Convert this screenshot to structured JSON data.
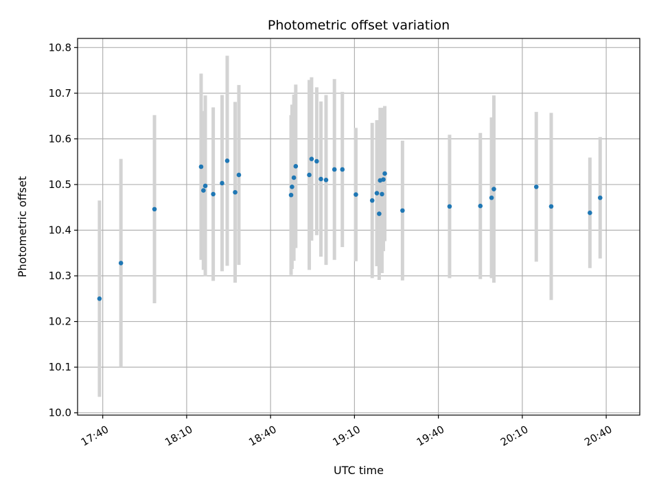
{
  "chart_data": {
    "type": "scatter",
    "title": "Photometric offset variation",
    "xlabel": "UTC time",
    "ylabel": "Photometric offset",
    "xlim": [
      "17:31",
      "20:52"
    ],
    "ylim": [
      9.995,
      10.82
    ],
    "x_ticks": [
      "17:40",
      "18:10",
      "18:40",
      "19:10",
      "19:40",
      "20:10",
      "20:40"
    ],
    "y_ticks": [
      10.0,
      10.1,
      10.2,
      10.3,
      10.4,
      10.5,
      10.6,
      10.7,
      10.8
    ],
    "y_tick_labels": [
      "10.0",
      "10.1",
      "10.2",
      "10.3",
      "10.4",
      "10.5",
      "10.6",
      "10.7",
      "10.8"
    ],
    "grid": true,
    "marker_color": "#1f77b4",
    "errorbar_color": "#d3d3d3",
    "points": [
      {
        "t": "17:38:50",
        "y": 10.25,
        "err": 0.215
      },
      {
        "t": "17:46:30",
        "y": 10.328,
        "err": 0.228
      },
      {
        "t": "17:58:30",
        "y": 10.446,
        "err": 0.206
      },
      {
        "t": "18:15:10",
        "y": 10.539,
        "err": 0.204
      },
      {
        "t": "18:16:00",
        "y": 10.487,
        "err": 0.174
      },
      {
        "t": "18:16:40",
        "y": 10.497,
        "err": 0.198
      },
      {
        "t": "18:19:30",
        "y": 10.479,
        "err": 0.19
      },
      {
        "t": "18:22:40",
        "y": 10.503,
        "err": 0.193
      },
      {
        "t": "18:24:30",
        "y": 10.552,
        "err": 0.23
      },
      {
        "t": "18:27:20",
        "y": 10.483,
        "err": 0.198
      },
      {
        "t": "18:28:40",
        "y": 10.521,
        "err": 0.197
      },
      {
        "t": "18:47:20",
        "y": 10.477,
        "err": 0.175
      },
      {
        "t": "18:47:40",
        "y": 10.495,
        "err": 0.18
      },
      {
        "t": "18:48:20",
        "y": 10.515,
        "err": 0.182
      },
      {
        "t": "18:49:00",
        "y": 10.54,
        "err": 0.179
      },
      {
        "t": "18:53:50",
        "y": 10.521,
        "err": 0.208
      },
      {
        "t": "18:54:40",
        "y": 10.556,
        "err": 0.179
      },
      {
        "t": "18:56:30",
        "y": 10.551,
        "err": 0.162
      },
      {
        "t": "18:58:00",
        "y": 10.512,
        "err": 0.17
      },
      {
        "t": "18:59:50",
        "y": 10.51,
        "err": 0.186
      },
      {
        "t": "19:02:50",
        "y": 10.533,
        "err": 0.198
      },
      {
        "t": "19:05:40",
        "y": 10.533,
        "err": 0.17
      },
      {
        "t": "19:10:30",
        "y": 10.478,
        "err": 0.146
      },
      {
        "t": "19:16:20",
        "y": 10.465,
        "err": 0.17
      },
      {
        "t": "19:18:00",
        "y": 10.481,
        "err": 0.16
      },
      {
        "t": "19:18:50",
        "y": 10.436,
        "err": 0.145
      },
      {
        "t": "19:19:10",
        "y": 10.509,
        "err": 0.159
      },
      {
        "t": "19:19:50",
        "y": 10.479,
        "err": 0.173
      },
      {
        "t": "19:20:20",
        "y": 10.511,
        "err": 0.157
      },
      {
        "t": "19:20:50",
        "y": 10.524,
        "err": 0.148
      },
      {
        "t": "19:27:10",
        "y": 10.443,
        "err": 0.153
      },
      {
        "t": "19:44:00",
        "y": 10.452,
        "err": 0.157
      },
      {
        "t": "19:55:00",
        "y": 10.453,
        "err": 0.16
      },
      {
        "t": "19:59:00",
        "y": 10.471,
        "err": 0.176
      },
      {
        "t": "19:59:50",
        "y": 10.49,
        "err": 0.205
      },
      {
        "t": "20:15:00",
        "y": 10.495,
        "err": 0.164
      },
      {
        "t": "20:20:20",
        "y": 10.452,
        "err": 0.205
      },
      {
        "t": "20:34:10",
        "y": 10.438,
        "err": 0.121
      },
      {
        "t": "20:37:50",
        "y": 10.471,
        "err": 0.133
      }
    ]
  }
}
